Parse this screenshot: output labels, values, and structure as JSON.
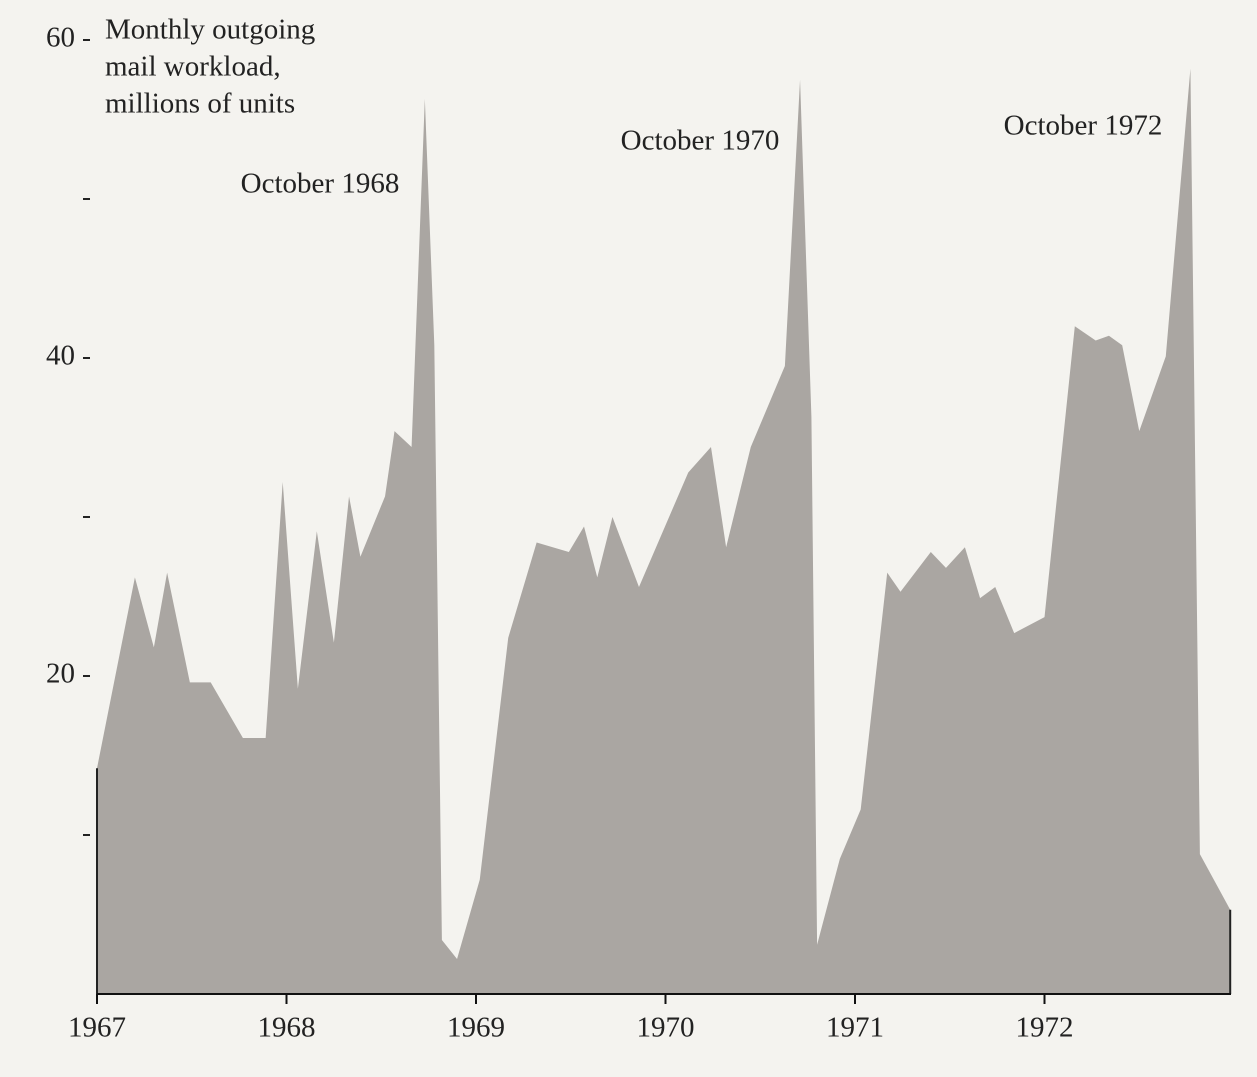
{
  "chart_data": {
    "type": "area",
    "ylabel": [
      "Monthly outgoing",
      "mail workload,",
      "millions of units"
    ],
    "annotations": [
      "October 1968",
      "October 1970",
      "October 1972"
    ],
    "color": "#aaa6a2",
    "x": [
      1967.0,
      1967.2,
      1967.3,
      1967.37,
      1967.49,
      1967.6,
      1967.77,
      1967.89,
      1967.98,
      1968.06,
      1968.16,
      1968.25,
      1968.33,
      1968.39,
      1968.52,
      1968.57,
      1968.66,
      1968.73,
      1968.78,
      1968.82,
      1968.9,
      1969.02,
      1969.17,
      1969.32,
      1969.49,
      1969.57,
      1969.64,
      1969.72,
      1969.86,
      1970.12,
      1970.24,
      1970.32,
      1970.45,
      1970.63,
      1970.71,
      1970.77,
      1970.8,
      1970.92,
      1971.03,
      1971.17,
      1971.24,
      1971.4,
      1971.48,
      1971.58,
      1971.66,
      1971.74,
      1971.84,
      1972.0,
      1972.16,
      1972.27,
      1972.34,
      1972.41,
      1972.5,
      1972.64,
      1972.77,
      1972.82,
      1972.98
    ],
    "values": [
      14.2,
      26.2,
      21.8,
      26.5,
      19.6,
      19.6,
      16.1,
      16.1,
      32.2,
      19.2,
      29.1,
      22.1,
      31.3,
      27.5,
      31.3,
      35.4,
      34.4,
      56.3,
      40.8,
      3.4,
      2.2,
      7.2,
      22.4,
      28.4,
      27.8,
      29.4,
      26.2,
      30.0,
      25.6,
      32.8,
      34.4,
      28.1,
      34.4,
      39.5,
      57.5,
      36.3,
      3.1,
      8.5,
      11.6,
      26.5,
      25.3,
      27.8,
      26.8,
      28.1,
      24.9,
      25.6,
      22.7,
      23.7,
      42.0,
      41.1,
      41.4,
      40.8,
      35.4,
      40.1,
      58.2,
      8.8,
      5.3
    ],
    "xlim": [
      1967,
      1973
    ],
    "xticks": [
      1967,
      1968,
      1969,
      1970,
      1971,
      1972
    ],
    "ylim": [
      0,
      60
    ],
    "yticks": [
      {
        "value": 10,
        "label": null
      },
      20,
      {
        "value": 30,
        "label": null
      },
      40,
      {
        "value": 50,
        "label": null
      },
      60
    ]
  }
}
